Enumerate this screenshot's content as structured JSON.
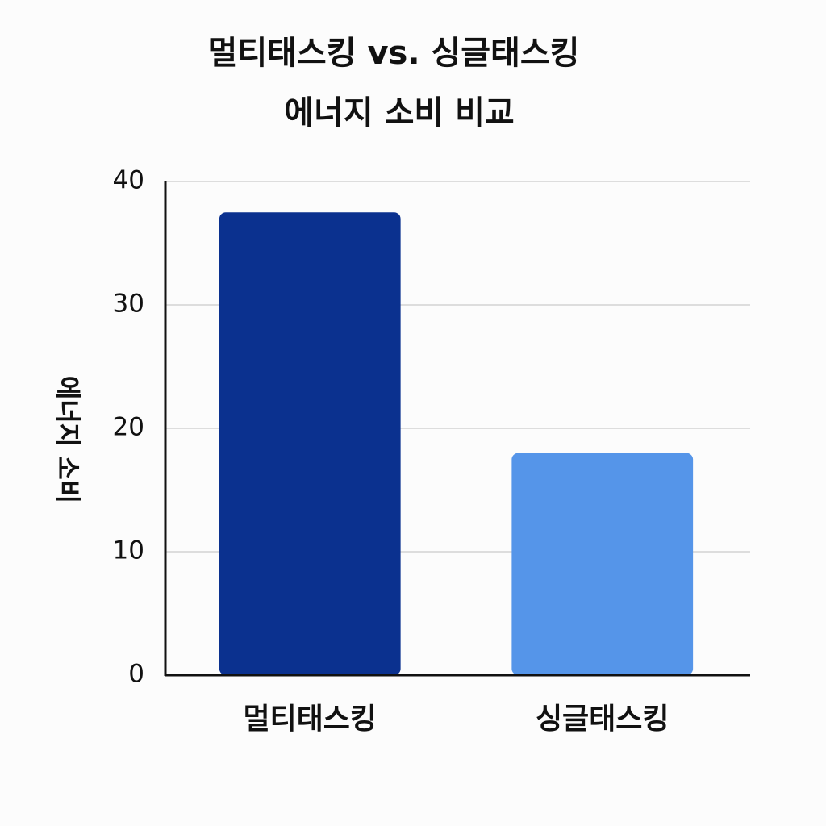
{
  "chart_data": {
    "type": "bar",
    "title": [
      "멀티태스킹 vs. 싱글태스킹",
      "에너지 소비 비교"
    ],
    "y_label": "에너지 소비",
    "categories": [
      "멀티태스킹",
      "싱글태스킹"
    ],
    "values": [
      37.5,
      18
    ],
    "colors": [
      "#0b318f",
      "#5595e9"
    ],
    "ylim": [
      0,
      40
    ],
    "yticks": [
      0,
      10,
      20,
      30,
      40
    ],
    "grid": true
  }
}
